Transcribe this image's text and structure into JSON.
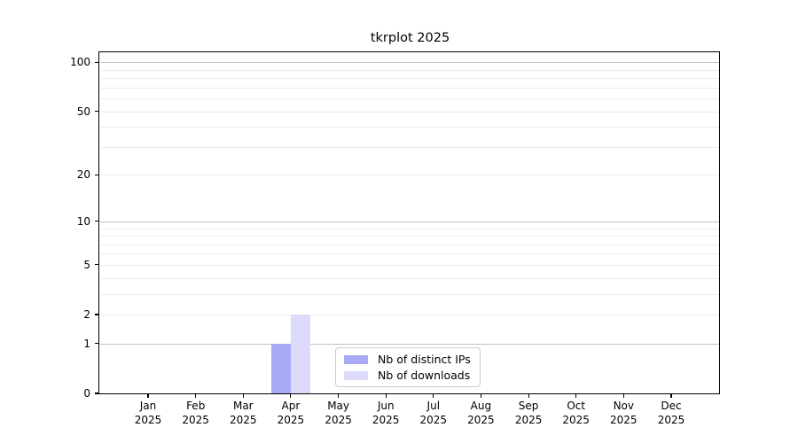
{
  "chart_data": {
    "type": "bar",
    "title": "tkrplot 2025",
    "categories": [
      "Jan",
      "Feb",
      "Mar",
      "Apr",
      "May",
      "Jun",
      "Jul",
      "Aug",
      "Sep",
      "Oct",
      "Nov",
      "Dec"
    ],
    "x_year": "2025",
    "series": [
      {
        "name": "Nb of distinct IPs",
        "color": "#a9a9f5",
        "values": [
          0,
          0,
          0,
          1,
          0,
          0,
          0,
          0,
          0,
          0,
          0,
          0
        ]
      },
      {
        "name": "Nb of downloads",
        "color": "#dcdcfa",
        "values": [
          0,
          0,
          0,
          2,
          0,
          0,
          0,
          0,
          0,
          0,
          0,
          0
        ]
      }
    ],
    "xlabel": "",
    "ylabel": "",
    "y_scale": "log1p",
    "y_ticks": [
      0,
      1,
      2,
      5,
      10,
      20,
      50,
      100
    ],
    "ylim": [
      0,
      115
    ],
    "grid_major_values": [
      1,
      10,
      100
    ],
    "grid_minor_values": [
      2,
      3,
      4,
      5,
      6,
      7,
      8,
      9,
      20,
      30,
      40,
      50,
      60,
      70,
      80,
      90
    ],
    "legend_position": "bottom-center",
    "colors": {
      "grid_major": "#c0c0c0",
      "grid_minor": "#ebebeb",
      "axis": "#000000",
      "text": "#000000",
      "legend_border": "#cccccc",
      "background": "#ffffff"
    }
  }
}
